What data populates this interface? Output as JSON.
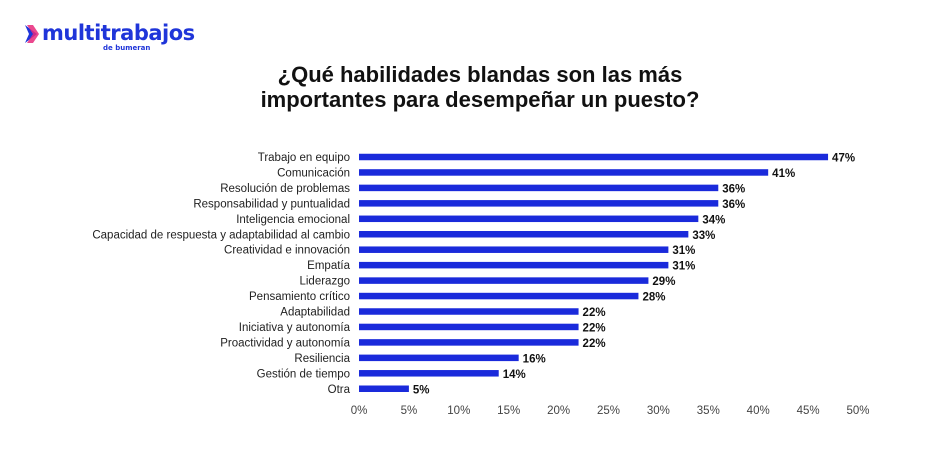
{
  "brand": {
    "name": "multitrabajos",
    "tagline": "de bumeran",
    "color": "#1f35d9"
  },
  "chart_data": {
    "type": "bar",
    "orientation": "horizontal",
    "title_lines": [
      "¿Qué habilidades blandas son las más",
      "importantes para desempeñar un puesto?"
    ],
    "categories": [
      "Trabajo en equipo",
      "Comunicación",
      "Resolución de problemas",
      "Responsabilidad y puntualidad",
      "Inteligencia emocional",
      "Capacidad de respuesta y adaptabilidad al cambio",
      "Creatividad e innovación",
      "Empatía",
      "Liderazgo",
      "Pensamiento crítico",
      "Adaptabilidad",
      "Iniciativa y autonomía",
      "Proactividad y autonomía",
      "Resiliencia",
      "Gestión de tiempo",
      "Otra"
    ],
    "values": [
      47,
      41,
      36,
      36,
      34,
      33,
      31,
      31,
      29,
      28,
      22,
      22,
      22,
      16,
      14,
      5
    ],
    "value_labels": [
      "47%",
      "41%",
      "36%",
      "36%",
      "34%",
      "33%",
      "31%",
      "31%",
      "29%",
      "28%",
      "22%",
      "22%",
      "22%",
      "16%",
      "14%",
      "5%"
    ],
    "xlim": [
      0,
      50
    ],
    "x_ticks": [
      0,
      5,
      10,
      15,
      20,
      25,
      30,
      35,
      40,
      45,
      50
    ],
    "x_tick_labels": [
      "0%",
      "5%",
      "10%",
      "15%",
      "20%",
      "25%",
      "30%",
      "35%",
      "40%",
      "45%",
      "50%"
    ],
    "bar_color": "#1a2adb",
    "grid": false,
    "legend": "none"
  }
}
